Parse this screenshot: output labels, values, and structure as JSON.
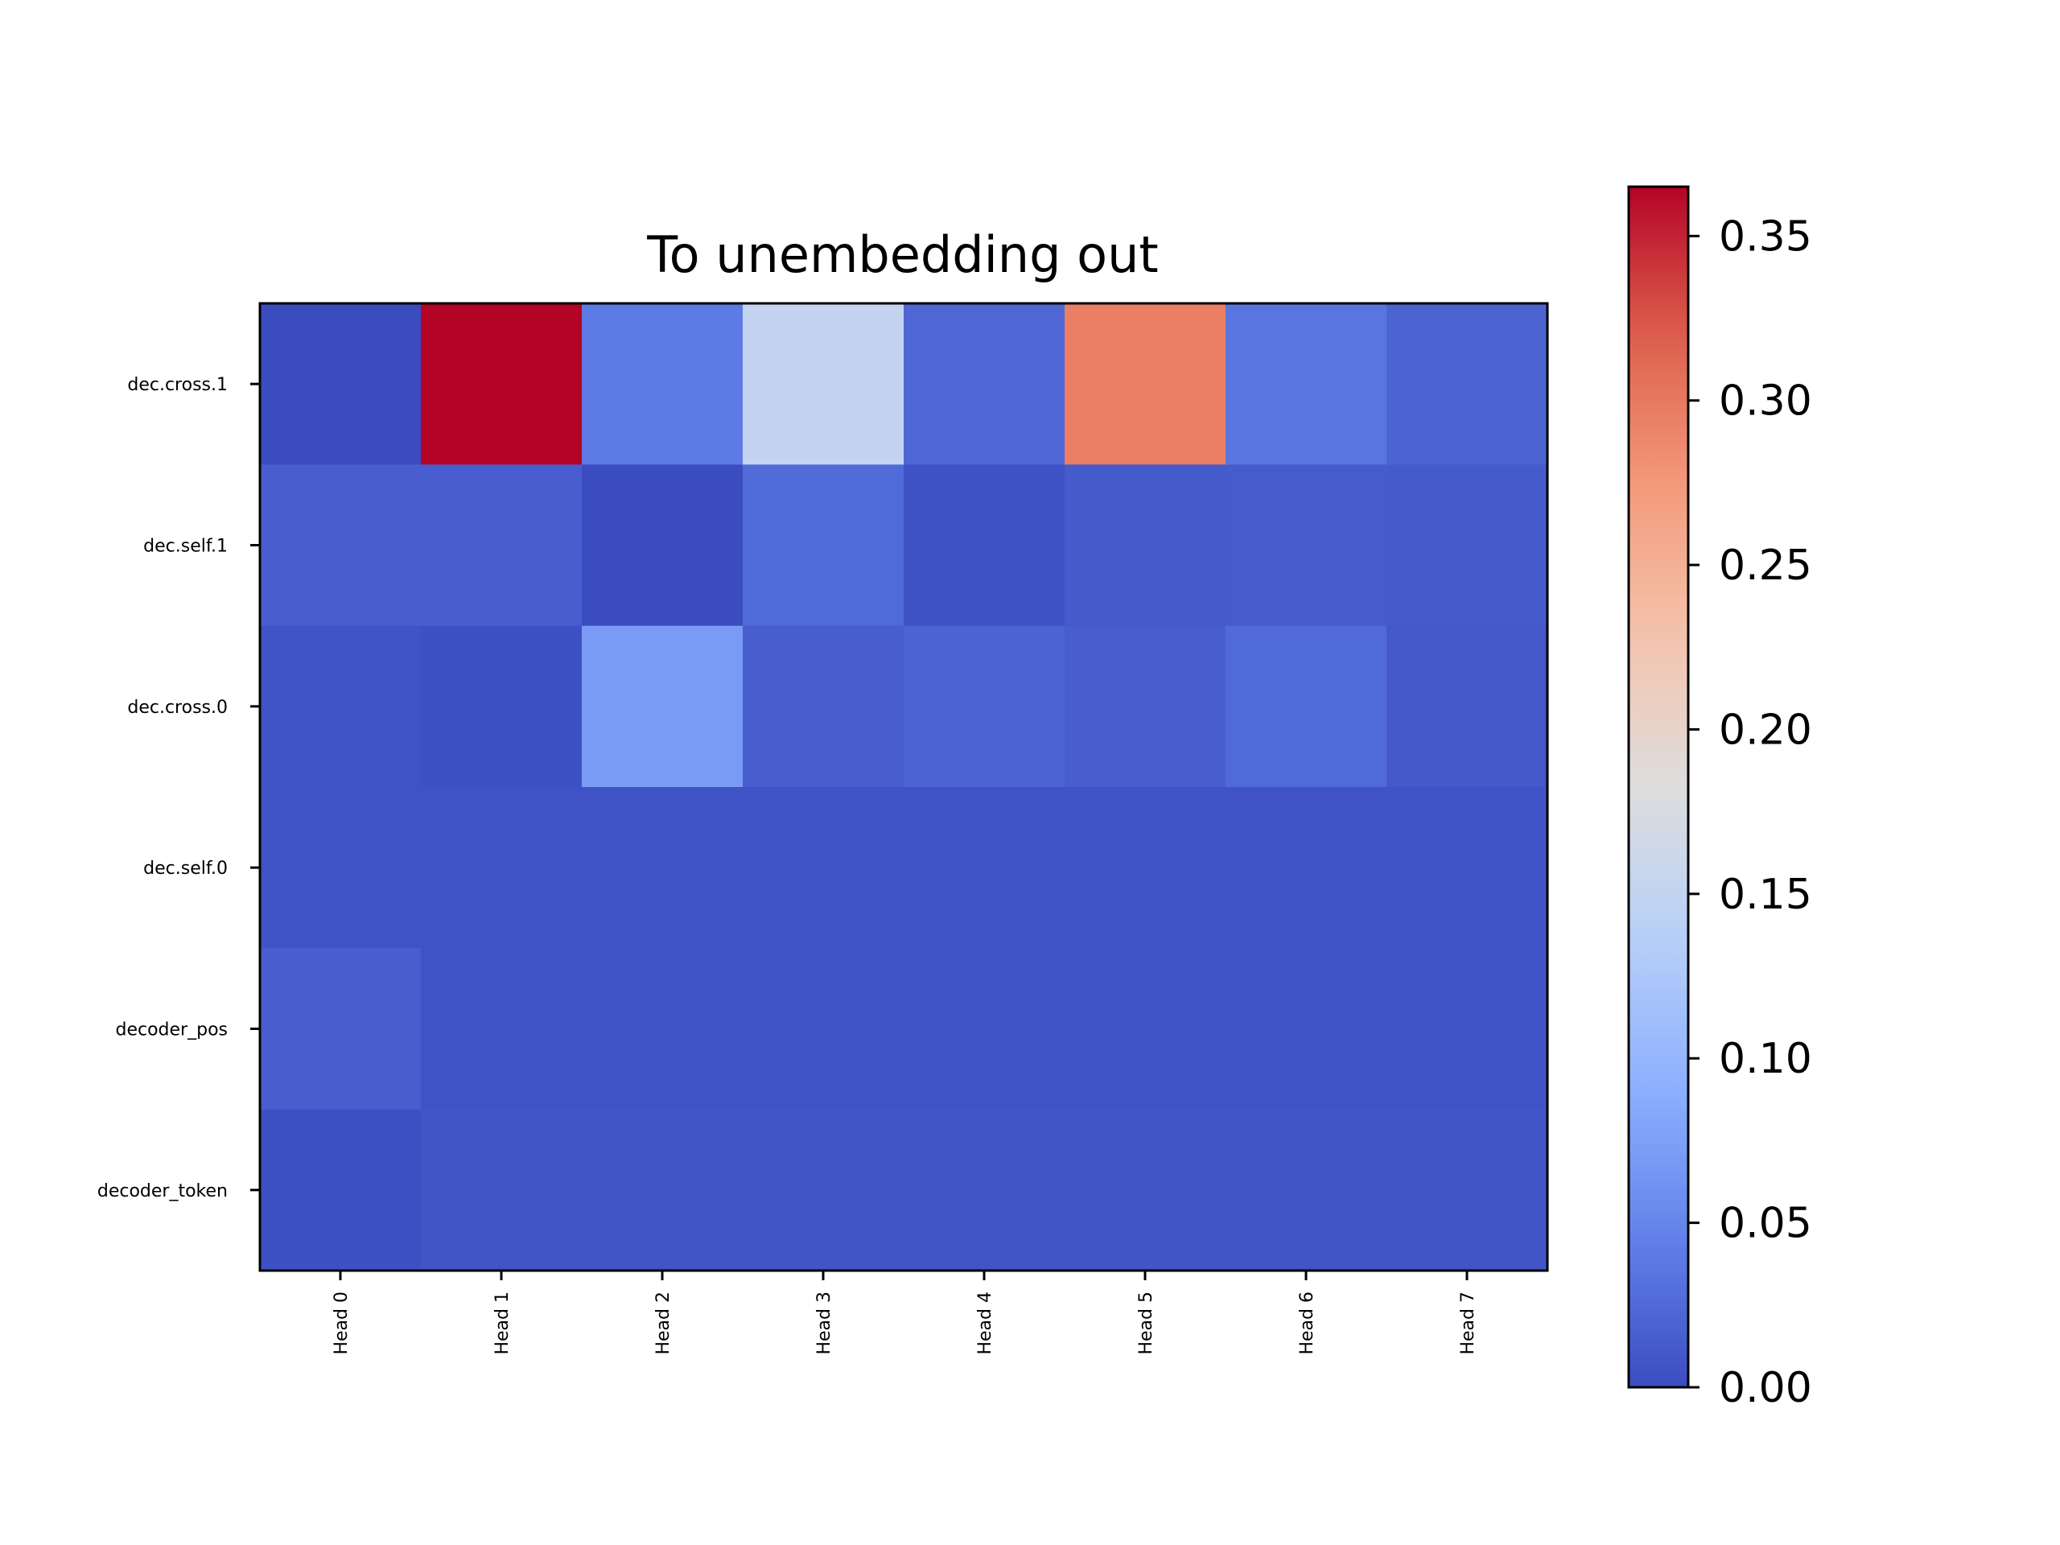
{
  "chart_data": {
    "type": "heatmap",
    "title": "To unembedding out",
    "xlabel": "",
    "ylabel": "",
    "x_categories": [
      "Head 0",
      "Head 1",
      "Head 2",
      "Head 3",
      "Head 4",
      "Head 5",
      "Head 6",
      "Head 7"
    ],
    "y_categories": [
      "dec.cross.1",
      "dec.self.1",
      "dec.cross.0",
      "dec.self.0",
      "decoder_pos",
      "decoder_token"
    ],
    "values": [
      [
        0.0,
        0.365,
        0.04,
        0.152,
        0.023,
        0.295,
        0.035,
        0.02
      ],
      [
        0.015,
        0.015,
        0.0,
        0.025,
        0.005,
        0.012,
        0.013,
        0.012
      ],
      [
        0.006,
        0.004,
        0.07,
        0.015,
        0.02,
        0.015,
        0.025,
        0.01
      ],
      [
        0.006,
        0.006,
        0.006,
        0.006,
        0.006,
        0.006,
        0.006,
        0.006
      ],
      [
        0.015,
        0.006,
        0.006,
        0.006,
        0.006,
        0.006,
        0.006,
        0.006
      ],
      [
        0.004,
        0.008,
        0.008,
        0.008,
        0.008,
        0.008,
        0.008,
        0.008
      ]
    ],
    "colormap": "coolwarm",
    "colorbar": {
      "vmin": 0.0,
      "vmax": 0.365,
      "ticks": [
        0.0,
        0.05,
        0.1,
        0.15,
        0.2,
        0.25,
        0.3,
        0.35
      ],
      "tick_labels": [
        "0.00",
        "0.05",
        "0.10",
        "0.15",
        "0.20",
        "0.25",
        "0.30",
        "0.35"
      ]
    },
    "grid": false,
    "x_tick_rotation": "vertical"
  }
}
